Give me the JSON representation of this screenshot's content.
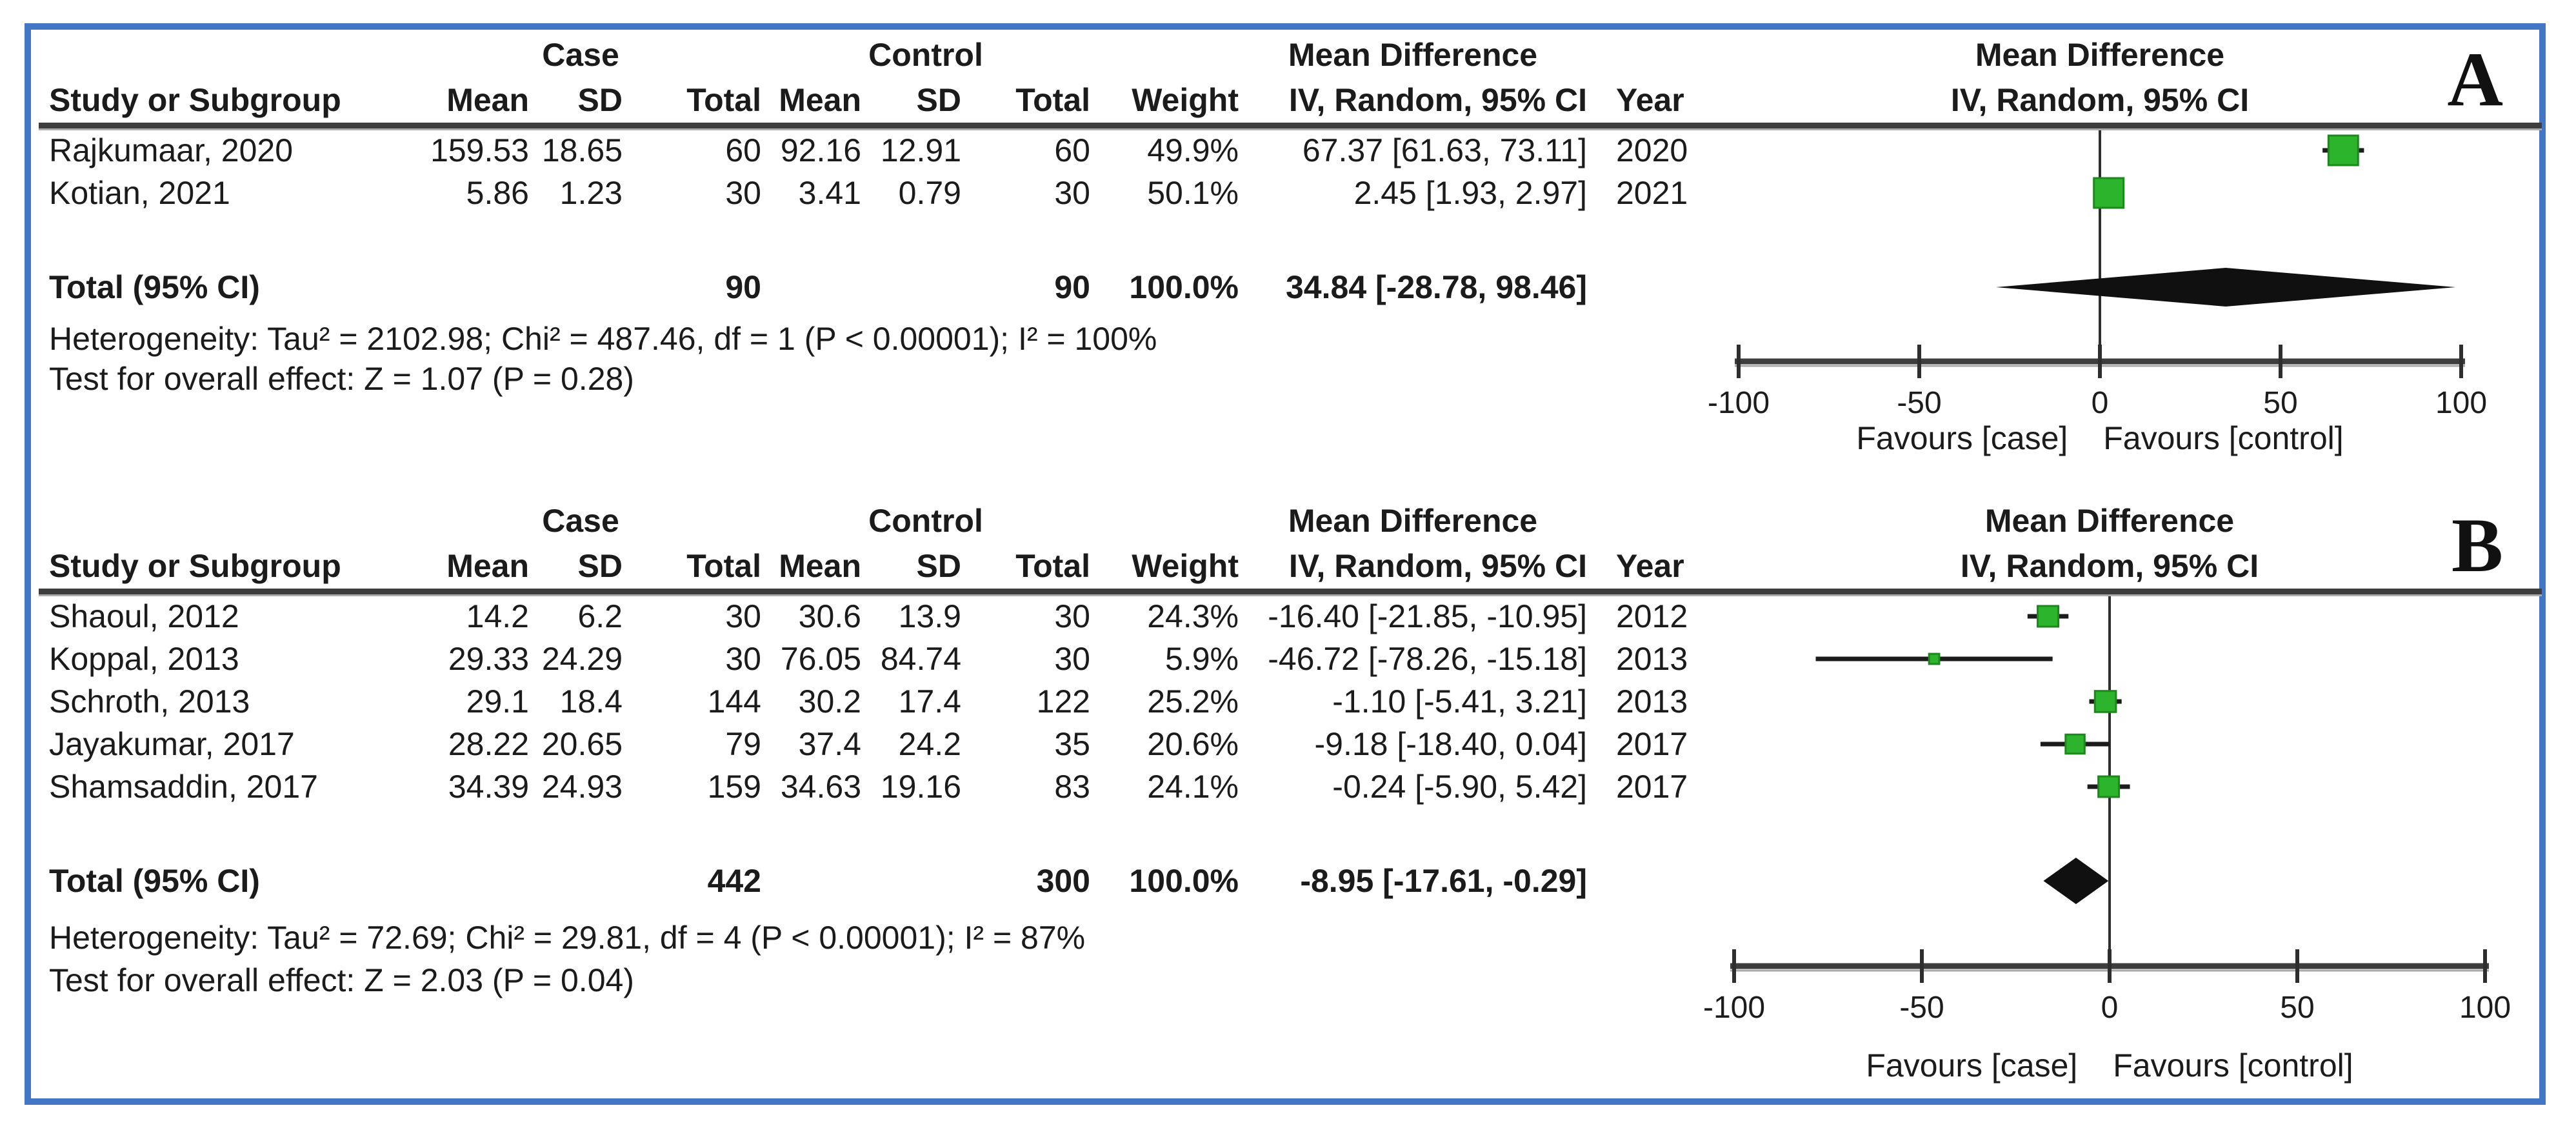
{
  "figure": {
    "border_color": "#4377C6",
    "marker_color": "#2CB52C",
    "marker_border_color": "#1E871E",
    "diamond_color": "#101010"
  },
  "chart_data": [
    {
      "type": "forest",
      "panel_label": "A",
      "group_headers": {
        "case": "Case",
        "control": "Control",
        "effect": "Mean Difference"
      },
      "column_headers": [
        "Study or Subgroup",
        "Mean",
        "SD",
        "Total",
        "Mean",
        "SD",
        "Total",
        "Weight",
        "IV, Random, 95% CI",
        "Year"
      ],
      "effect_header_line1": "Mean Difference",
      "effect_header_line2": "IV, Random, 95% CI",
      "studies": [
        {
          "study": "Rajkumaar, 2020",
          "case_mean": 159.53,
          "case_sd": 18.65,
          "case_total": 60,
          "control_mean": 92.16,
          "control_sd": 12.91,
          "control_total": 60,
          "weight": "49.9%",
          "md": 67.37,
          "ci_low": 61.63,
          "ci_high": 73.11,
          "ci_text": "67.37 [61.63, 73.11]",
          "year": 2020
        },
        {
          "study": "Kotian, 2021",
          "case_mean": 5.86,
          "case_sd": 1.23,
          "case_total": 30,
          "control_mean": 3.41,
          "control_sd": 0.79,
          "control_total": 30,
          "weight": "50.1%",
          "md": 2.45,
          "ci_low": 1.93,
          "ci_high": 2.97,
          "ci_text": "2.45 [1.93, 2.97]",
          "year": 2021
        }
      ],
      "total": {
        "label": "Total (95% CI)",
        "case_total": 90,
        "control_total": 90,
        "weight": "100.0%",
        "md": 34.84,
        "ci_low": -28.78,
        "ci_high": 98.46,
        "ci_text": "34.84 [-28.78, 98.46]"
      },
      "heterogeneity": "Heterogeneity: Tau² = 2102.98; Chi² = 487.46, df = 1 (P < 0.00001); I² = 100%",
      "overall_effect": "Test for overall effect: Z = 1.07 (P = 0.28)",
      "axis": {
        "min": -100,
        "max": 100,
        "ticks": [
          -100,
          -50,
          0,
          50,
          100
        ]
      },
      "favours_left": "Favours [case]",
      "favours_right": "Favours [control]"
    },
    {
      "type": "forest",
      "panel_label": "B",
      "group_headers": {
        "case": "Case",
        "control": "Control",
        "effect": "Mean Difference"
      },
      "column_headers": [
        "Study or Subgroup",
        "Mean",
        "SD",
        "Total",
        "Mean",
        "SD",
        "Total",
        "Weight",
        "IV, Random, 95% CI",
        "Year"
      ],
      "effect_header_line1": "Mean Difference",
      "effect_header_line2": "IV, Random, 95% CI",
      "studies": [
        {
          "study": "Shaoul, 2012",
          "case_mean": 14.2,
          "case_sd": 6.2,
          "case_total": 30,
          "control_mean": 30.6,
          "control_sd": 13.9,
          "control_total": 30,
          "weight": "24.3%",
          "md": -16.4,
          "ci_low": -21.85,
          "ci_high": -10.95,
          "ci_text": "-16.40 [-21.85, -10.95]",
          "year": 2012
        },
        {
          "study": "Koppal, 2013",
          "case_mean": 29.33,
          "case_sd": 24.29,
          "case_total": 30,
          "control_mean": 76.05,
          "control_sd": 84.74,
          "control_total": 30,
          "weight": "5.9%",
          "md": -46.72,
          "ci_low": -78.26,
          "ci_high": -15.18,
          "ci_text": "-46.72 [-78.26, -15.18]",
          "year": 2013
        },
        {
          "study": "Schroth, 2013",
          "case_mean": 29.1,
          "case_sd": 18.4,
          "case_total": 144,
          "control_mean": 30.2,
          "control_sd": 17.4,
          "control_total": 122,
          "weight": "25.2%",
          "md": -1.1,
          "ci_low": -5.41,
          "ci_high": 3.21,
          "ci_text": "-1.10 [-5.41, 3.21]",
          "year": 2013
        },
        {
          "study": "Jayakumar, 2017",
          "case_mean": 28.22,
          "case_sd": 20.65,
          "case_total": 79,
          "control_mean": 37.4,
          "control_sd": 24.2,
          "control_total": 35,
          "weight": "20.6%",
          "md": -9.18,
          "ci_low": -18.4,
          "ci_high": 0.04,
          "ci_text": "-9.18 [-18.40, 0.04]",
          "year": 2017
        },
        {
          "study": "Shamsaddin, 2017",
          "case_mean": 34.39,
          "case_sd": 24.93,
          "case_total": 159,
          "control_mean": 34.63,
          "control_sd": 19.16,
          "control_total": 83,
          "weight": "24.1%",
          "md": -0.24,
          "ci_low": -5.9,
          "ci_high": 5.42,
          "ci_text": "-0.24 [-5.90, 5.42]",
          "year": 2017
        }
      ],
      "total": {
        "label": "Total (95% CI)",
        "case_total": 442,
        "control_total": 300,
        "weight": "100.0%",
        "md": -8.95,
        "ci_low": -17.61,
        "ci_high": -0.29,
        "ci_text": "-8.95 [-17.61, -0.29]"
      },
      "heterogeneity": "Heterogeneity: Tau² = 72.69; Chi² = 29.81, df = 4 (P < 0.00001); I² = 87%",
      "overall_effect": "Test for overall effect: Z = 2.03 (P = 0.04)",
      "axis": {
        "min": -100,
        "max": 100,
        "ticks": [
          -100,
          -50,
          0,
          50,
          100
        ]
      },
      "favours_left": "Favours [case]",
      "favours_right": "Favours [control]"
    }
  ]
}
